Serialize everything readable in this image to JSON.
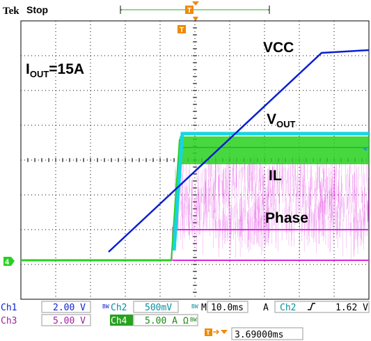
{
  "header": {
    "brand": "Tek",
    "run_state": "Stop"
  },
  "trigger_marker": "T",
  "channel_marker": "4",
  "annotations": {
    "current_prefix": "I",
    "current_sub": "OUT",
    "current_value": "=15A",
    "vcc": "VCC",
    "vout_main": "V",
    "vout_sub": "OUT",
    "il": "IL",
    "phase": "Phase"
  },
  "settings": {
    "ch1_label": "Ch1",
    "ch1_scale": "2.00 V",
    "ch1_bw": "BW",
    "ch2_label": "Ch2",
    "ch2_scale": "500mV",
    "ch2_bw": "BW",
    "ch3_label": "Ch3",
    "ch3_scale": "5.00 V",
    "ch4_label": "Ch4",
    "ch4_scale": "5.00 A",
    "ch4_units": "Ω",
    "ch4_bw": "BW",
    "timebase_label": "M",
    "timebase": "10.0ms",
    "trigger_mode": "A",
    "trigger_source": "Ch2",
    "trigger_slope": "rising-edge-icon",
    "trigger_level": "1.62 V",
    "trigger_position": "3.69000ms"
  },
  "colors": {
    "ch1": "#0a1fd0",
    "ch2": "#17d5e0",
    "ch3": "#e025e0",
    "ch4": "#27d11f",
    "trigger": "#f08a00",
    "grid": "#000000"
  }
}
